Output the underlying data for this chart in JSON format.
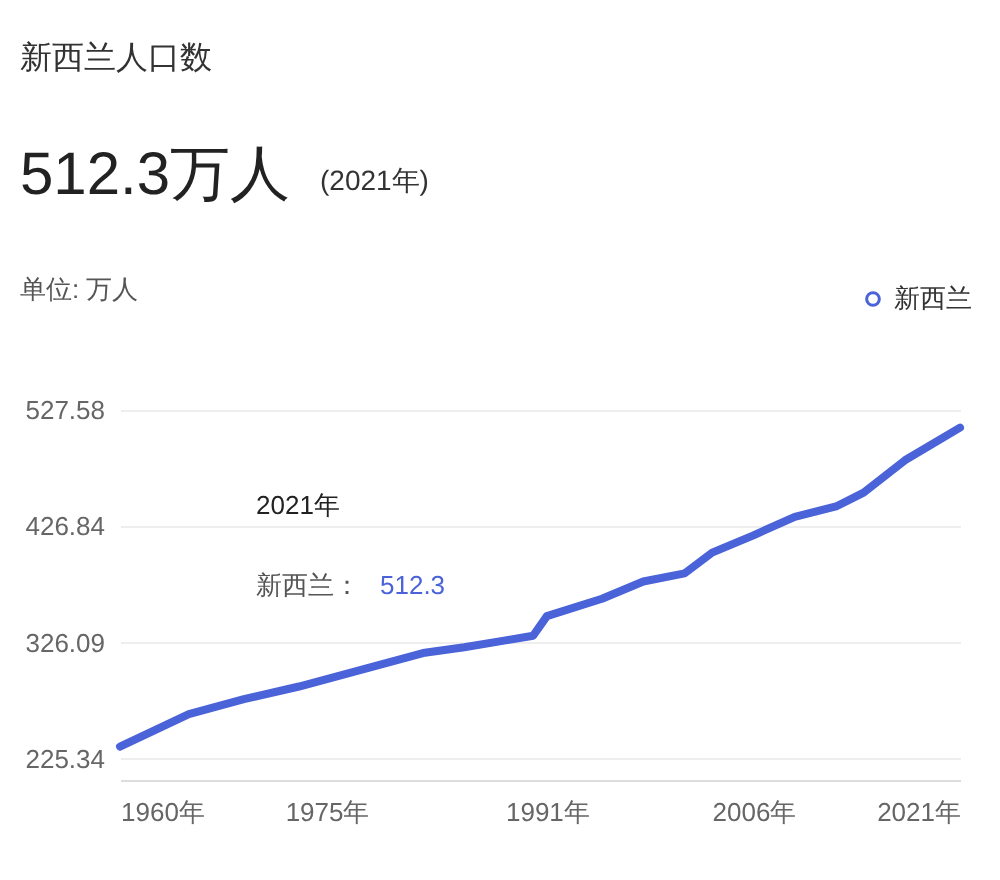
{
  "chart_data": {
    "type": "line",
    "title": "新西兰人口数",
    "subtitle": "512.3万人",
    "ylabel": "单位: 万人",
    "annotations": [
      "(2021年)",
      "2021年",
      "新西兰：",
      "512.3"
    ],
    "x": [
      1960,
      1965,
      1969,
      1973,
      1982,
      1985,
      1988,
      1990,
      1991,
      1995,
      1998,
      2001,
      2003,
      2006,
      2009,
      2012,
      2014,
      2017,
      2021
    ],
    "series": [
      {
        "name": "新西兰",
        "color": "#4a63d8",
        "values": [
          236,
          264,
          277,
          288,
          317,
          322,
          328,
          332,
          349,
          364,
          379,
          386,
          404,
          419,
          435,
          444,
          456,
          484,
          512.3
        ]
      }
    ],
    "xlim": [
      1960,
      2021
    ],
    "xticks": [
      {
        "value": 1960,
        "label": "1960年"
      },
      {
        "value": 1975,
        "label": "1975年"
      },
      {
        "value": 1991,
        "label": "1991年"
      },
      {
        "value": 2006,
        "label": "2006年"
      },
      {
        "value": 2021,
        "label": "2021年"
      }
    ],
    "ylim": [
      207,
      527.58
    ],
    "yticks": [
      {
        "value": 225.34,
        "label": "225.34"
      },
      {
        "value": 326.09,
        "label": "326.09"
      },
      {
        "value": 426.84,
        "label": "426.84"
      },
      {
        "value": 527.58,
        "label": "527.58"
      }
    ],
    "grid": "y",
    "legend": "top right",
    "marker": "none",
    "line_style": "solid"
  }
}
